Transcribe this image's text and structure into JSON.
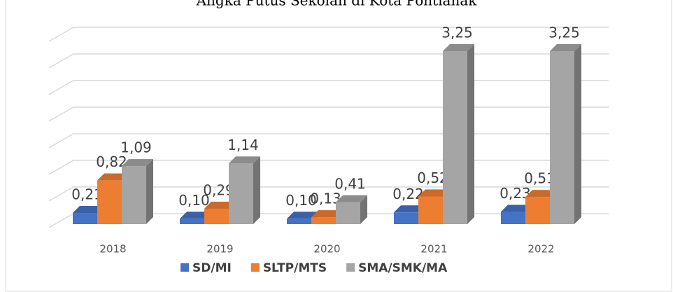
{
  "chart_data": {
    "type": "bar3d",
    "title": "Angka Putus Sekolah di Kota Pontianak",
    "categories": [
      "2018",
      "2019",
      "2020",
      "2021",
      "2022"
    ],
    "series": [
      {
        "name": "SD/MI",
        "color": "#4472c4",
        "values": [
          0.21,
          0.1,
          0.1,
          0.22,
          0.23
        ],
        "value_labels": [
          "0,21",
          "0,10",
          "0,10",
          "0,22",
          "0,23"
        ]
      },
      {
        "name": "SLTP/MTS",
        "color": "#ed7d31",
        "values": [
          0.82,
          0.29,
          0.13,
          0.52,
          0.51
        ],
        "value_labels": [
          "0,82",
          "0,29",
          "0,13",
          "0,52",
          "0,51"
        ]
      },
      {
        "name": "SMA/SMK/MA",
        "color": "#a5a5a5",
        "values": [
          1.09,
          1.14,
          0.41,
          3.25,
          3.25
        ],
        "value_labels": [
          "1,09",
          "1,14",
          "0,41",
          "3,25",
          "3,25"
        ]
      }
    ],
    "ylim": [
      0,
      3.5
    ],
    "yticks": [
      0,
      0.5,
      1,
      1.5,
      2,
      2.5,
      3,
      3.5
    ],
    "grid": true
  }
}
